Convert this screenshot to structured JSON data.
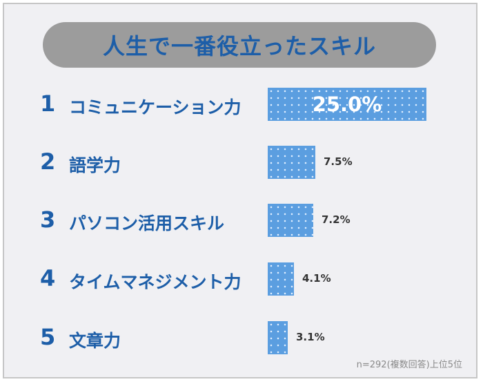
{
  "chart_data": {
    "type": "bar",
    "orientation": "horizontal",
    "title": "人生で一番役立ったスキル",
    "ranks": [
      "1",
      "2",
      "3",
      "4",
      "5"
    ],
    "categories": [
      "コミュニケーション力",
      "語学力",
      "パソコン活用スキル",
      "タイムマネジメント力",
      "文章力"
    ],
    "values": [
      25.0,
      7.5,
      7.2,
      4.1,
      3.1
    ],
    "value_labels": [
      "25.0%",
      "7.5%",
      "7.2%",
      "4.1%",
      "3.1%"
    ],
    "unit": "%",
    "xlim": [
      0,
      25.0
    ],
    "bar_color": "#5b9ee0",
    "text_color": "#1d5ea8",
    "grid": false,
    "note": "n=292(複数回答)上位5位"
  }
}
